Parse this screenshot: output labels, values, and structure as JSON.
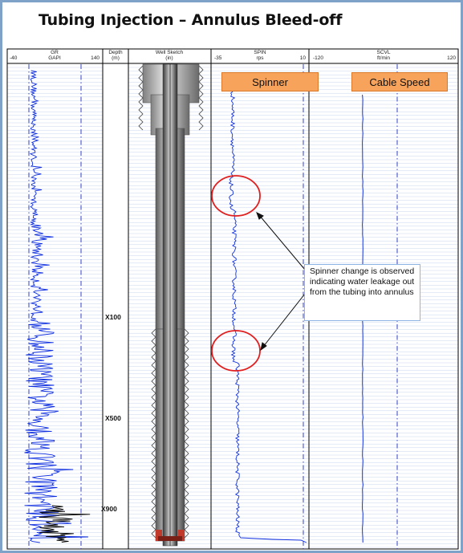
{
  "title": "Tubing Injection – Annulus Bleed-off",
  "tracks": {
    "gr": {
      "name": "GR",
      "unit": "GAPI",
      "min": "-40",
      "max": "140"
    },
    "depth": {
      "name": "Depth",
      "unit": "(m)"
    },
    "sketch": {
      "name": "Well Sketch",
      "unit": "(in)"
    },
    "spin": {
      "name": "SPIN",
      "unit": "rps",
      "min": "-35",
      "max": "10"
    },
    "scvl": {
      "name": "SCVL",
      "unit": "ft/min",
      "min": "-120",
      "max": "120"
    }
  },
  "depth_labels": [
    "X100",
    "X500",
    "X900"
  ],
  "badges": {
    "spinner": "Spinner",
    "cable_speed": "Cable Speed"
  },
  "callout": "Spinner change is observed indicating water leakage out from the tubing into annulus",
  "colors": {
    "curve": "#1030e0",
    "gr_hot": "#000000",
    "highlight_circle": "#e02020",
    "badge_fill": "#f7a35c",
    "frame": "#7fa3c8"
  }
}
